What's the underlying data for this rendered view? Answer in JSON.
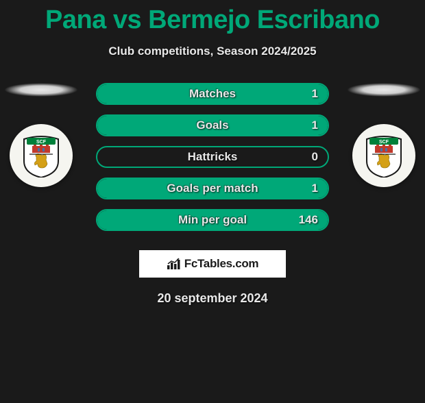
{
  "colors": {
    "background": "#1a1a1a",
    "accent": "#00a878",
    "text_light": "#e8e8e8",
    "logo_bg": "#ffffff",
    "logo_text": "#1a1a1a",
    "badge_bg": "#f5f5f0"
  },
  "title": "Pana vs Bermejo Escribano",
  "subtitle": "Club competitions, Season 2024/2025",
  "stats": [
    {
      "label": "Matches",
      "value": "1",
      "fill_pct": 100
    },
    {
      "label": "Goals",
      "value": "1",
      "fill_pct": 100
    },
    {
      "label": "Hattricks",
      "value": "0",
      "fill_pct": 0
    },
    {
      "label": "Goals per match",
      "value": "1",
      "fill_pct": 100
    },
    {
      "label": "Min per goal",
      "value": "146",
      "fill_pct": 100
    }
  ],
  "club_left": {
    "name": "SCF",
    "initials": "SCF",
    "crest_colors": {
      "top_banner": "#00803a",
      "castle": "#c0392b",
      "lion": "#d4a017",
      "shield_border": "#1a1a1a",
      "shield_fill": "#ffffff"
    }
  },
  "club_right": {
    "name": "SCF",
    "initials": "SCF",
    "crest_colors": {
      "top_banner": "#00803a",
      "castle": "#c0392b",
      "lion": "#d4a017",
      "shield_border": "#1a1a1a",
      "shield_fill": "#ffffff"
    }
  },
  "logo": {
    "brand_text": "FcTables.com",
    "chart_color": "#1a1a1a"
  },
  "date_text": "20 september 2024"
}
